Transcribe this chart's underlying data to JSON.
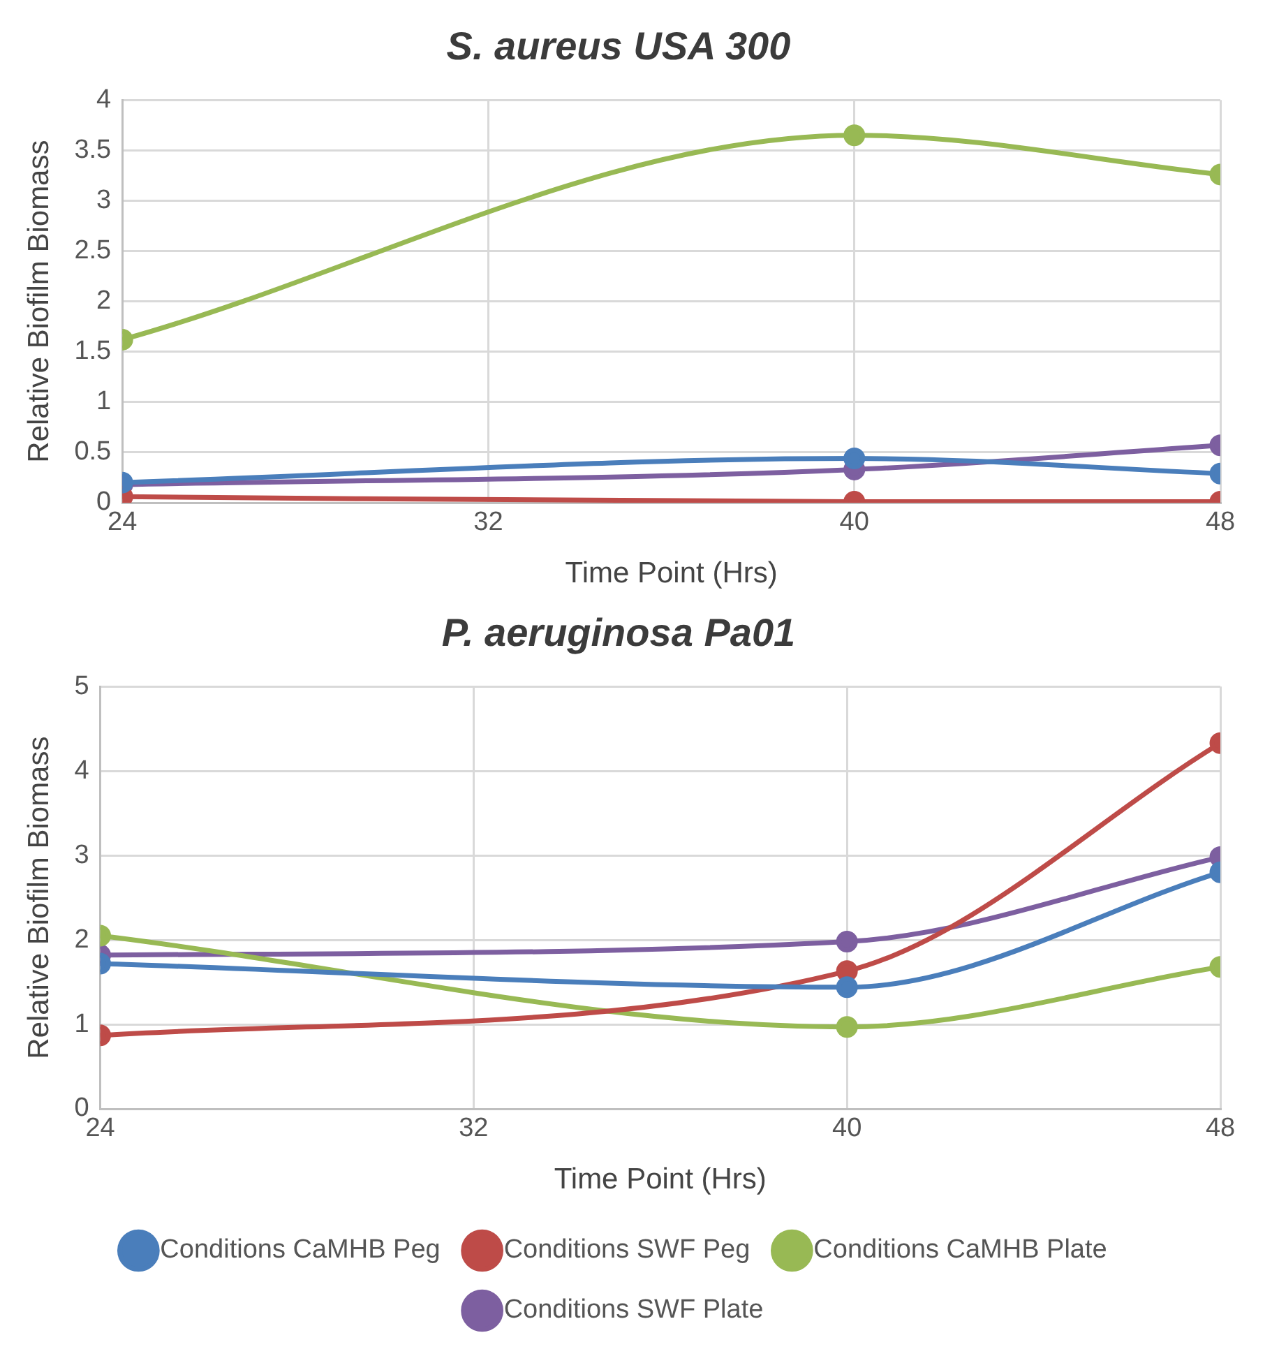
{
  "chart_data": [
    {
      "type": "line",
      "title": "S. aureus USA 300",
      "xlabel": "Time Point (Hrs)",
      "ylabel": "Relative Biofilm Biomass",
      "x": [
        24,
        40,
        48
      ],
      "xlim": [
        24,
        48
      ],
      "xticks": [
        24,
        32,
        40,
        48
      ],
      "ylim": [
        0,
        4
      ],
      "yticks": [
        0,
        0.5,
        1,
        1.5,
        2,
        2.5,
        3,
        3.5,
        4
      ],
      "grid": true,
      "legend": false,
      "marker": "circle",
      "series": [
        {
          "color": "#4a7ebb",
          "values": [
            0.2,
            0.44,
            0.29
          ]
        },
        {
          "color": "#be4b48",
          "values": [
            0.06,
            0.01,
            0.01
          ]
        },
        {
          "color": "#98b954",
          "values": [
            1.62,
            3.65,
            3.26
          ]
        },
        {
          "color": "#7d5fa0",
          "values": [
            0.18,
            0.33,
            0.57
          ]
        }
      ]
    },
    {
      "type": "line",
      "title": "P. aeruginosa Pa01",
      "xlabel": "Time Point (Hrs)",
      "ylabel": "Relative Biofilm Biomass",
      "x": [
        24,
        40,
        48
      ],
      "xlim": [
        24,
        48
      ],
      "xticks": [
        24,
        32,
        40,
        48
      ],
      "ylim": [
        0,
        5
      ],
      "yticks": [
        0,
        1,
        2,
        3,
        4,
        5
      ],
      "grid": true,
      "legend": "bottom",
      "marker": "circle",
      "series": [
        {
          "name": "Conditions CaMHB Peg",
          "color": "#4a7ebb",
          "values": [
            1.72,
            1.44,
            2.8
          ]
        },
        {
          "name": "Conditions SWF Peg",
          "color": "#be4b48",
          "values": [
            0.87,
            1.63,
            4.33
          ]
        },
        {
          "name": "Conditions CaMHB Plate",
          "color": "#98b954",
          "values": [
            2.05,
            0.97,
            1.68
          ]
        },
        {
          "name": "Conditions SWF Plate",
          "color": "#7d5fa0",
          "values": [
            1.82,
            1.98,
            2.98
          ]
        }
      ]
    }
  ]
}
